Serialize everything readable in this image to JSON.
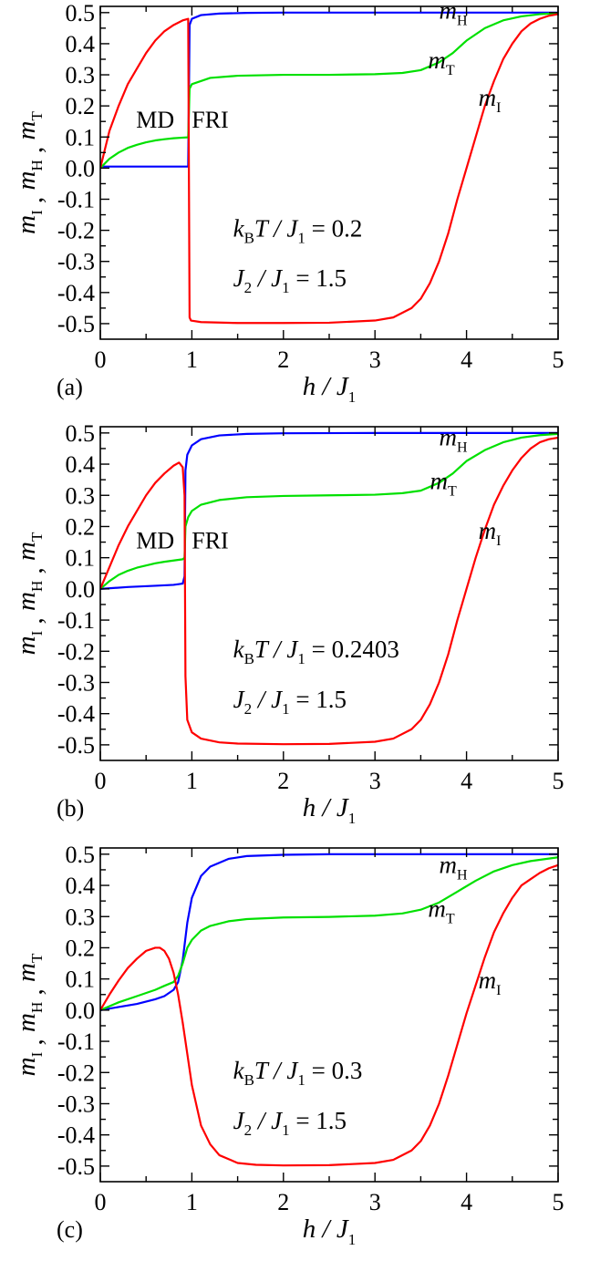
{
  "chart_data": [
    {
      "type": "line",
      "panel_label": "(a)",
      "xlabel": {
        "main": "h / J",
        "sub": "1"
      },
      "ylabel": {
        "parts": [
          {
            "t": "m",
            "s": "I"
          },
          {
            "t": "m",
            "s": "H"
          },
          {
            "t": "m",
            "s": "T"
          }
        ],
        "sep": " , "
      },
      "xlim": [
        0,
        5
      ],
      "ylim": [
        -0.55,
        0.52
      ],
      "xticks": [
        0,
        1,
        2,
        3,
        4,
        5
      ],
      "xtick_labels": [
        "0",
        "1",
        "2",
        "3",
        "4",
        "5"
      ],
      "yticks": [
        -0.5,
        -0.4,
        -0.3,
        -0.2,
        -0.1,
        0.0,
        0.1,
        0.2,
        0.3,
        0.4,
        0.5
      ],
      "ytick_labels": [
        "-0.5",
        "-0.4",
        "-0.3",
        "-0.2",
        "-0.1",
        "0.0",
        "0.1",
        "0.2",
        "0.3",
        "0.4",
        "0.5"
      ],
      "grid": false,
      "annotation": [
        {
          "a": "k",
          "as": "B",
          "b": "T / J",
          "bs": "1",
          "c": " = 0.2"
        },
        {
          "a": "J",
          "as": "2",
          "b": " / J",
          "bs": "1",
          "c": " = 1.5"
        }
      ],
      "phase_labels": [
        "MD",
        "FRI"
      ],
      "series": [
        {
          "name": "m",
          "sub": "H",
          "color": "#0000ff",
          "x": [
            0,
            0.5,
            0.96,
            0.975,
            1.0,
            1.1,
            1.3,
            1.6,
            2.0,
            3.0,
            4.0,
            5.0
          ],
          "y": [
            0.005,
            0.005,
            0.005,
            0.46,
            0.48,
            0.492,
            0.497,
            0.499,
            0.5,
            0.5,
            0.5,
            0.5
          ]
        },
        {
          "name": "m",
          "sub": "T",
          "color": "#00e000",
          "x": [
            0,
            0.1,
            0.2,
            0.3,
            0.4,
            0.5,
            0.6,
            0.7,
            0.8,
            0.9,
            0.96,
            0.975,
            1.0,
            1.2,
            1.5,
            2.0,
            2.5,
            3.0,
            3.3,
            3.5,
            3.7,
            3.85,
            4.0,
            4.2,
            4.4,
            4.6,
            4.8,
            5.0
          ],
          "y": [
            0.0,
            0.03,
            0.05,
            0.065,
            0.075,
            0.083,
            0.089,
            0.093,
            0.096,
            0.098,
            0.099,
            0.255,
            0.27,
            0.29,
            0.297,
            0.3,
            0.3,
            0.302,
            0.306,
            0.315,
            0.34,
            0.37,
            0.41,
            0.45,
            0.475,
            0.488,
            0.495,
            0.498
          ]
        },
        {
          "name": "m",
          "sub": "I",
          "color": "#ff0000",
          "x": [
            0,
            0.05,
            0.1,
            0.2,
            0.3,
            0.4,
            0.5,
            0.6,
            0.7,
            0.8,
            0.9,
            0.96,
            0.975,
            0.99,
            1.1,
            1.5,
            2.0,
            2.5,
            3.0,
            3.2,
            3.4,
            3.5,
            3.6,
            3.7,
            3.8,
            3.9,
            4.0,
            4.1,
            4.2,
            4.3,
            4.4,
            4.5,
            4.6,
            4.7,
            4.8,
            4.9,
            5.0
          ],
          "y": [
            0.0,
            0.06,
            0.12,
            0.2,
            0.27,
            0.32,
            0.37,
            0.41,
            0.44,
            0.46,
            0.475,
            0.48,
            -0.48,
            -0.49,
            -0.495,
            -0.498,
            -0.498,
            -0.497,
            -0.49,
            -0.48,
            -0.45,
            -0.42,
            -0.37,
            -0.3,
            -0.21,
            -0.1,
            0.0,
            0.1,
            0.2,
            0.28,
            0.35,
            0.4,
            0.44,
            0.465,
            0.48,
            0.49,
            0.495
          ]
        }
      ]
    },
    {
      "type": "line",
      "panel_label": "(b)",
      "xlabel": {
        "main": "h / J",
        "sub": "1"
      },
      "ylabel": {
        "parts": [
          {
            "t": "m",
            "s": "I"
          },
          {
            "t": "m",
            "s": "H"
          },
          {
            "t": "m",
            "s": "T"
          }
        ],
        "sep": " , "
      },
      "xlim": [
        0,
        5
      ],
      "ylim": [
        -0.55,
        0.52
      ],
      "xticks": [
        0,
        1,
        2,
        3,
        4,
        5
      ],
      "xtick_labels": [
        "0",
        "1",
        "2",
        "3",
        "4",
        "5"
      ],
      "yticks": [
        -0.5,
        -0.4,
        -0.3,
        -0.2,
        -0.1,
        0.0,
        0.1,
        0.2,
        0.3,
        0.4,
        0.5
      ],
      "ytick_labels": [
        "-0.5",
        "-0.4",
        "-0.3",
        "-0.2",
        "-0.1",
        "0.0",
        "0.1",
        "0.2",
        "0.3",
        "0.4",
        "0.5"
      ],
      "grid": false,
      "annotation": [
        {
          "a": "k",
          "as": "B",
          "b": "T / J",
          "bs": "1",
          "c": " = 0.2403"
        },
        {
          "a": "J",
          "as": "2",
          "b": " / J",
          "bs": "1",
          "c": " = 1.5"
        }
      ],
      "phase_labels": [
        "MD",
        "FRI"
      ],
      "series": [
        {
          "name": "m",
          "sub": "H",
          "color": "#0000ff",
          "x": [
            0,
            0.3,
            0.6,
            0.8,
            0.9,
            0.92,
            0.93,
            0.95,
            1.0,
            1.1,
            1.3,
            1.6,
            2.0,
            3.0,
            4.0,
            5.0
          ],
          "y": [
            0.0,
            0.006,
            0.01,
            0.013,
            0.017,
            0.04,
            0.38,
            0.43,
            0.46,
            0.48,
            0.492,
            0.497,
            0.499,
            0.5,
            0.5,
            0.5
          ]
        },
        {
          "name": "m",
          "sub": "T",
          "color": "#00e000",
          "x": [
            0,
            0.1,
            0.2,
            0.3,
            0.4,
            0.5,
            0.6,
            0.7,
            0.8,
            0.9,
            0.92,
            0.93,
            0.96,
            1.0,
            1.1,
            1.3,
            1.6,
            2.0,
            2.5,
            3.0,
            3.3,
            3.5,
            3.7,
            3.85,
            4.0,
            4.2,
            4.4,
            4.6,
            4.8,
            5.0
          ],
          "y": [
            0.0,
            0.025,
            0.045,
            0.058,
            0.068,
            0.075,
            0.082,
            0.087,
            0.091,
            0.095,
            0.1,
            0.2,
            0.23,
            0.25,
            0.27,
            0.285,
            0.294,
            0.298,
            0.3,
            0.302,
            0.307,
            0.315,
            0.34,
            0.37,
            0.41,
            0.445,
            0.47,
            0.485,
            0.493,
            0.497
          ]
        },
        {
          "name": "m",
          "sub": "I",
          "color": "#ff0000",
          "x": [
            0,
            0.1,
            0.2,
            0.3,
            0.4,
            0.5,
            0.6,
            0.7,
            0.8,
            0.86,
            0.9,
            0.92,
            0.93,
            0.95,
            1.0,
            1.1,
            1.3,
            1.5,
            2.0,
            2.5,
            3.0,
            3.2,
            3.4,
            3.5,
            3.6,
            3.7,
            3.8,
            3.9,
            4.0,
            4.1,
            4.2,
            4.3,
            4.4,
            4.5,
            4.6,
            4.7,
            4.8,
            4.9,
            5.0
          ],
          "y": [
            0.0,
            0.07,
            0.14,
            0.2,
            0.25,
            0.3,
            0.34,
            0.37,
            0.395,
            0.405,
            0.39,
            0.3,
            -0.28,
            -0.42,
            -0.46,
            -0.48,
            -0.492,
            -0.496,
            -0.498,
            -0.497,
            -0.49,
            -0.48,
            -0.45,
            -0.42,
            -0.37,
            -0.3,
            -0.21,
            -0.1,
            0.0,
            0.1,
            0.19,
            0.27,
            0.33,
            0.38,
            0.42,
            0.45,
            0.47,
            0.48,
            0.485
          ]
        }
      ]
    },
    {
      "type": "line",
      "panel_label": "(c)",
      "xlabel": {
        "main": "h / J",
        "sub": "1"
      },
      "ylabel": {
        "parts": [
          {
            "t": "m",
            "s": "I"
          },
          {
            "t": "m",
            "s": "H"
          },
          {
            "t": "m",
            "s": "T"
          }
        ],
        "sep": " , "
      },
      "xlim": [
        0,
        5
      ],
      "ylim": [
        -0.55,
        0.52
      ],
      "xticks": [
        0,
        1,
        2,
        3,
        4,
        5
      ],
      "xtick_labels": [
        "0",
        "1",
        "2",
        "3",
        "4",
        "5"
      ],
      "yticks": [
        -0.5,
        -0.4,
        -0.3,
        -0.2,
        -0.1,
        0.0,
        0.1,
        0.2,
        0.3,
        0.4,
        0.5
      ],
      "ytick_labels": [
        "-0.5",
        "-0.4",
        "-0.3",
        "-0.2",
        "-0.1",
        "0.0",
        "0.1",
        "0.2",
        "0.3",
        "0.4",
        "0.5"
      ],
      "grid": false,
      "annotation": [
        {
          "a": "k",
          "as": "B",
          "b": "T / J",
          "bs": "1",
          "c": " = 0.3"
        },
        {
          "a": "J",
          "as": "2",
          "b": " / J",
          "bs": "1",
          "c": " = 1.5"
        }
      ],
      "phase_labels": [],
      "series": [
        {
          "name": "m",
          "sub": "H",
          "color": "#0000ff",
          "x": [
            0,
            0.2,
            0.4,
            0.6,
            0.7,
            0.8,
            0.85,
            0.9,
            0.95,
            1.0,
            1.1,
            1.2,
            1.4,
            1.6,
            2.0,
            2.5,
            3.0,
            4.0,
            5.0
          ],
          "y": [
            0.0,
            0.01,
            0.02,
            0.035,
            0.045,
            0.065,
            0.09,
            0.16,
            0.28,
            0.36,
            0.43,
            0.46,
            0.485,
            0.494,
            0.498,
            0.5,
            0.5,
            0.5,
            0.5
          ]
        },
        {
          "name": "m",
          "sub": "T",
          "color": "#00e000",
          "x": [
            0,
            0.2,
            0.4,
            0.6,
            0.7,
            0.8,
            0.85,
            0.9,
            0.95,
            1.0,
            1.1,
            1.2,
            1.4,
            1.6,
            2.0,
            2.5,
            3.0,
            3.3,
            3.5,
            3.7,
            3.9,
            4.1,
            4.3,
            4.5,
            4.7,
            5.0
          ],
          "y": [
            0.0,
            0.025,
            0.045,
            0.065,
            0.078,
            0.09,
            0.11,
            0.15,
            0.2,
            0.225,
            0.255,
            0.27,
            0.285,
            0.292,
            0.297,
            0.299,
            0.303,
            0.31,
            0.322,
            0.345,
            0.38,
            0.415,
            0.445,
            0.465,
            0.478,
            0.49
          ]
        },
        {
          "name": "m",
          "sub": "I",
          "color": "#ff0000",
          "x": [
            0,
            0.1,
            0.2,
            0.3,
            0.4,
            0.5,
            0.6,
            0.65,
            0.7,
            0.75,
            0.8,
            0.85,
            0.9,
            0.95,
            1.0,
            1.1,
            1.2,
            1.3,
            1.5,
            1.7,
            2.0,
            2.5,
            3.0,
            3.2,
            3.4,
            3.5,
            3.6,
            3.7,
            3.8,
            3.9,
            4.0,
            4.1,
            4.2,
            4.3,
            4.4,
            4.5,
            4.6,
            4.7,
            4.8,
            4.9,
            5.0
          ],
          "y": [
            0.0,
            0.05,
            0.095,
            0.135,
            0.165,
            0.19,
            0.2,
            0.2,
            0.19,
            0.165,
            0.12,
            0.05,
            -0.04,
            -0.14,
            -0.24,
            -0.37,
            -0.43,
            -0.465,
            -0.49,
            -0.496,
            -0.498,
            -0.497,
            -0.49,
            -0.48,
            -0.45,
            -0.42,
            -0.37,
            -0.3,
            -0.21,
            -0.11,
            -0.01,
            0.08,
            0.17,
            0.25,
            0.31,
            0.36,
            0.4,
            0.42,
            0.44,
            0.455,
            0.465
          ]
        }
      ]
    }
  ],
  "series_label_layout": [
    {
      "H": [
        3.7,
        0.48
      ],
      "T": [
        3.58,
        0.32
      ],
      "I": [
        4.13,
        0.2
      ]
    },
    {
      "H": [
        3.7,
        0.46
      ],
      "T": [
        3.6,
        0.32
      ],
      "I": [
        4.13,
        0.16
      ]
    },
    {
      "H": [
        3.7,
        0.44
      ],
      "T": [
        3.58,
        0.3
      ],
      "I": [
        4.13,
        0.07
      ]
    }
  ]
}
